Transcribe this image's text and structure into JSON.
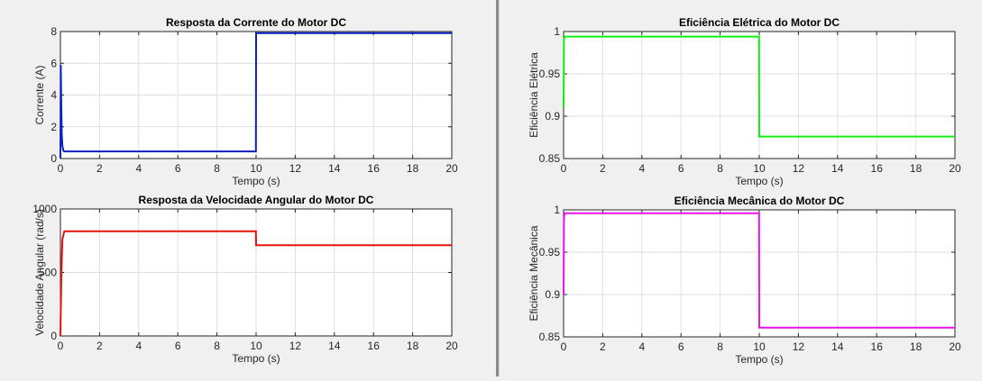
{
  "chart_data": [
    {
      "id": "corrente",
      "type": "line",
      "title": "Resposta da Corrente do Motor DC",
      "xlabel": "Tempo (s)",
      "ylabel": "Corrente (A)",
      "xlim": [
        0,
        20
      ],
      "ylim": [
        0,
        8
      ],
      "xticks": [
        0,
        2,
        4,
        6,
        8,
        10,
        12,
        14,
        16,
        18,
        20
      ],
      "yticks": [
        0,
        2,
        4,
        6,
        8
      ],
      "ytick_labels": [
        "0",
        "2",
        "4",
        "6",
        "8"
      ],
      "grid": true,
      "series": [
        {
          "color": "#0b1fbf",
          "x": [
            0,
            0.02,
            0.04,
            0.07,
            0.1,
            0.15,
            0.2,
            9.99,
            10.0,
            20.0
          ],
          "y": [
            0,
            5.9,
            3.5,
            1.5,
            0.8,
            0.5,
            0.45,
            0.45,
            7.9,
            7.9
          ]
        }
      ]
    },
    {
      "id": "velocidade",
      "type": "line",
      "title": "Resposta da Velocidade Angular do Motor DC",
      "xlabel": "Tempo (s)",
      "ylabel": "Velocidade Angular (rad/s)",
      "xlim": [
        0,
        20
      ],
      "ylim": [
        0,
        1000
      ],
      "xticks": [
        0,
        2,
        4,
        6,
        8,
        10,
        12,
        14,
        16,
        18,
        20
      ],
      "yticks": [
        0,
        500,
        1000
      ],
      "ytick_labels": [
        "0",
        "500",
        "1000"
      ],
      "grid": true,
      "series": [
        {
          "color": "#e8120c",
          "x": [
            0,
            0.05,
            0.1,
            0.2,
            9.99,
            10.0,
            20.0
          ],
          "y": [
            0,
            500,
            760,
            825,
            825,
            715,
            715
          ]
        }
      ]
    },
    {
      "id": "eficiencia-eletrica",
      "type": "line",
      "title": "Eficiência Elétrica do Motor DC",
      "xlabel": "Tempo (s)",
      "ylabel": "Eficiência Elétrica",
      "xlim": [
        0,
        20
      ],
      "ylim": [
        0.85,
        1
      ],
      "xticks": [
        0,
        2,
        4,
        6,
        8,
        10,
        12,
        14,
        16,
        18,
        20
      ],
      "yticks": [
        0.85,
        0.9,
        0.95,
        1
      ],
      "ytick_labels": [
        "0.85",
        "0.9",
        "0.95",
        "1"
      ],
      "grid": true,
      "series": [
        {
          "color": "#11ee11",
          "x": [
            0,
            0.02,
            0.05,
            9.99,
            10.0,
            20.0
          ],
          "y": [
            0.91,
            0.99,
            0.994,
            0.994,
            0.876,
            0.876
          ]
        }
      ]
    },
    {
      "id": "eficiencia-mecanica",
      "type": "line",
      "title": "Eficiência Mecânica do Motor DC",
      "xlabel": "Tempo (s)",
      "ylabel": "Eficiência Mecânica",
      "xlim": [
        0,
        20
      ],
      "ylim": [
        0.85,
        1
      ],
      "xticks": [
        0,
        2,
        4,
        6,
        8,
        10,
        12,
        14,
        16,
        18,
        20
      ],
      "yticks": [
        0.85,
        0.9,
        0.95,
        1
      ],
      "ytick_labels": [
        "0.85",
        "0.9",
        "0.95",
        "1"
      ],
      "grid": true,
      "series": [
        {
          "color": "#e813e8",
          "x": [
            0,
            0.02,
            0.05,
            9.99,
            10.0,
            20.0
          ],
          "y": [
            0.9,
            0.99,
            0.996,
            0.996,
            0.861,
            0.861
          ]
        }
      ]
    }
  ]
}
